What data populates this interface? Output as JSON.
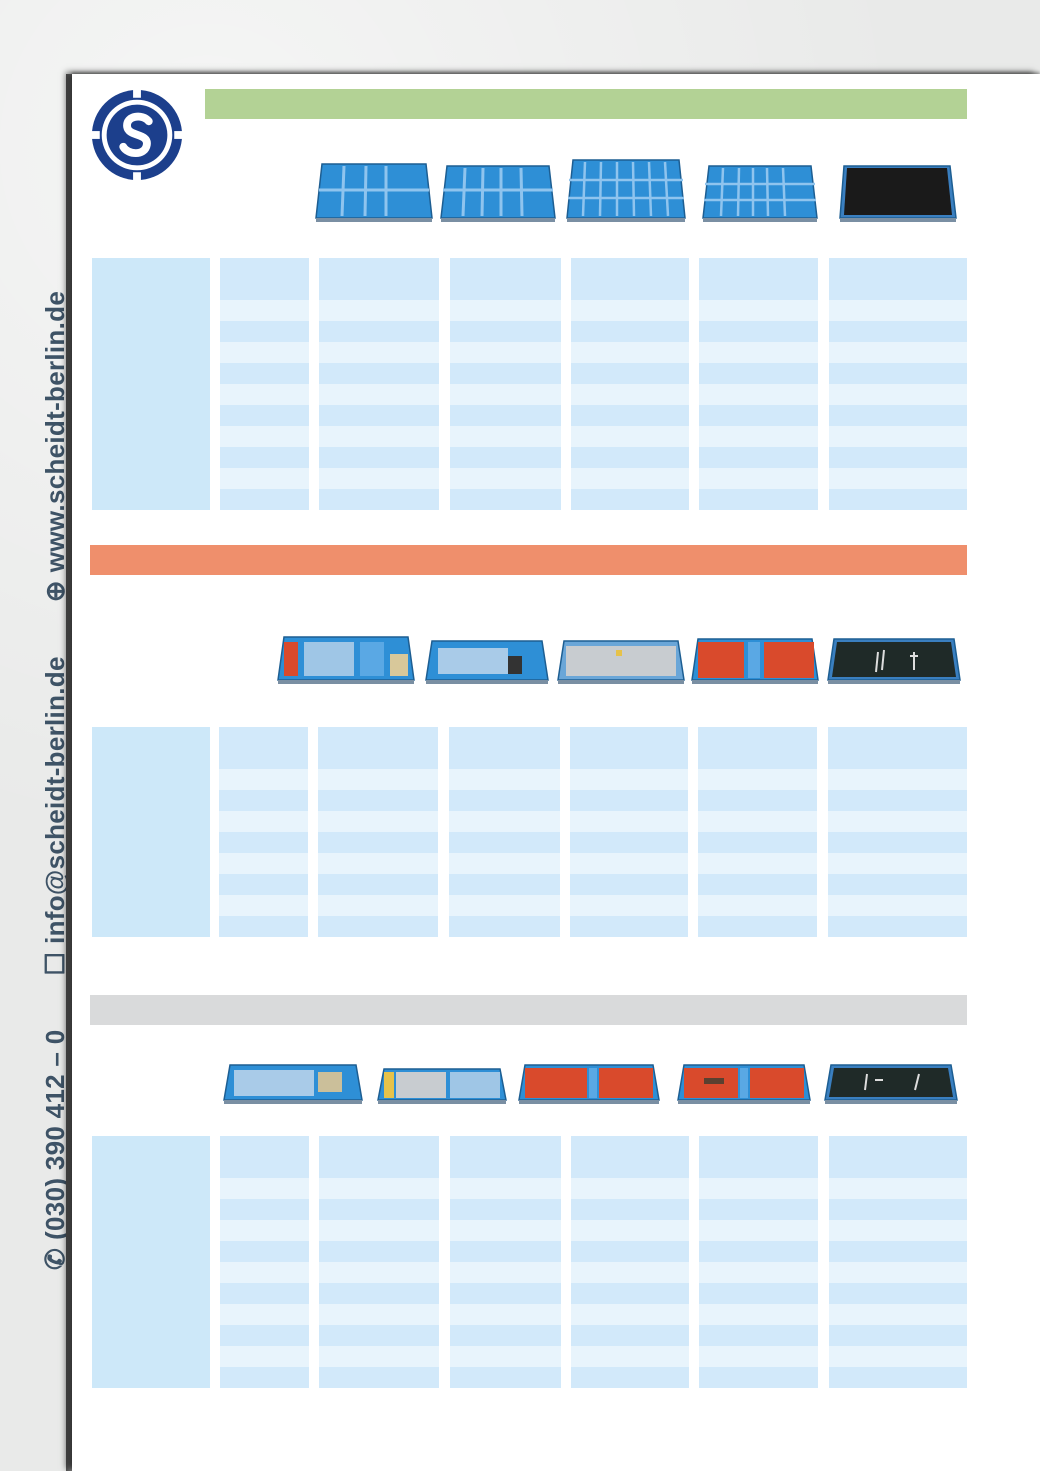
{
  "contact": {
    "phone": "(030) 390 412 – 0",
    "email": "info@scheidt-berlin.de",
    "website": "www.scheidt-berlin.de",
    "phone_icon": "phone-icon",
    "email_icon": "mail-icon",
    "web_icon": "globe-icon"
  },
  "logo": {
    "name": "scheidt-s-logo"
  },
  "sections": [
    {
      "band_color": "#b3d295",
      "trays": [
        "blue-divider-tray",
        "blue-divider-tray",
        "blue-divider-tray",
        "blue-divider-tray",
        "black-mat-tray"
      ],
      "rows": 12
    },
    {
      "band_color": "#ef8f6c",
      "trays": [
        "blue-insert-tray",
        "blue-insert-tray",
        "grey-insert-tray",
        "red-insert-tray",
        "black-mat-tray"
      ],
      "rows": 10
    },
    {
      "band_color": "#d9dadb",
      "trays": [
        "blue-insert-tray",
        "grey-insert-tray",
        "red-insert-tray",
        "red-insert-tray",
        "black-mat-tray"
      ],
      "rows": 12
    }
  ],
  "colors": {
    "table_dark": "#d2e9fa",
    "table_light": "#e8f4fc",
    "label_col": "#cde8f9",
    "tray_blue": "#2e8fd6",
    "tray_red": "#d94a2c"
  }
}
